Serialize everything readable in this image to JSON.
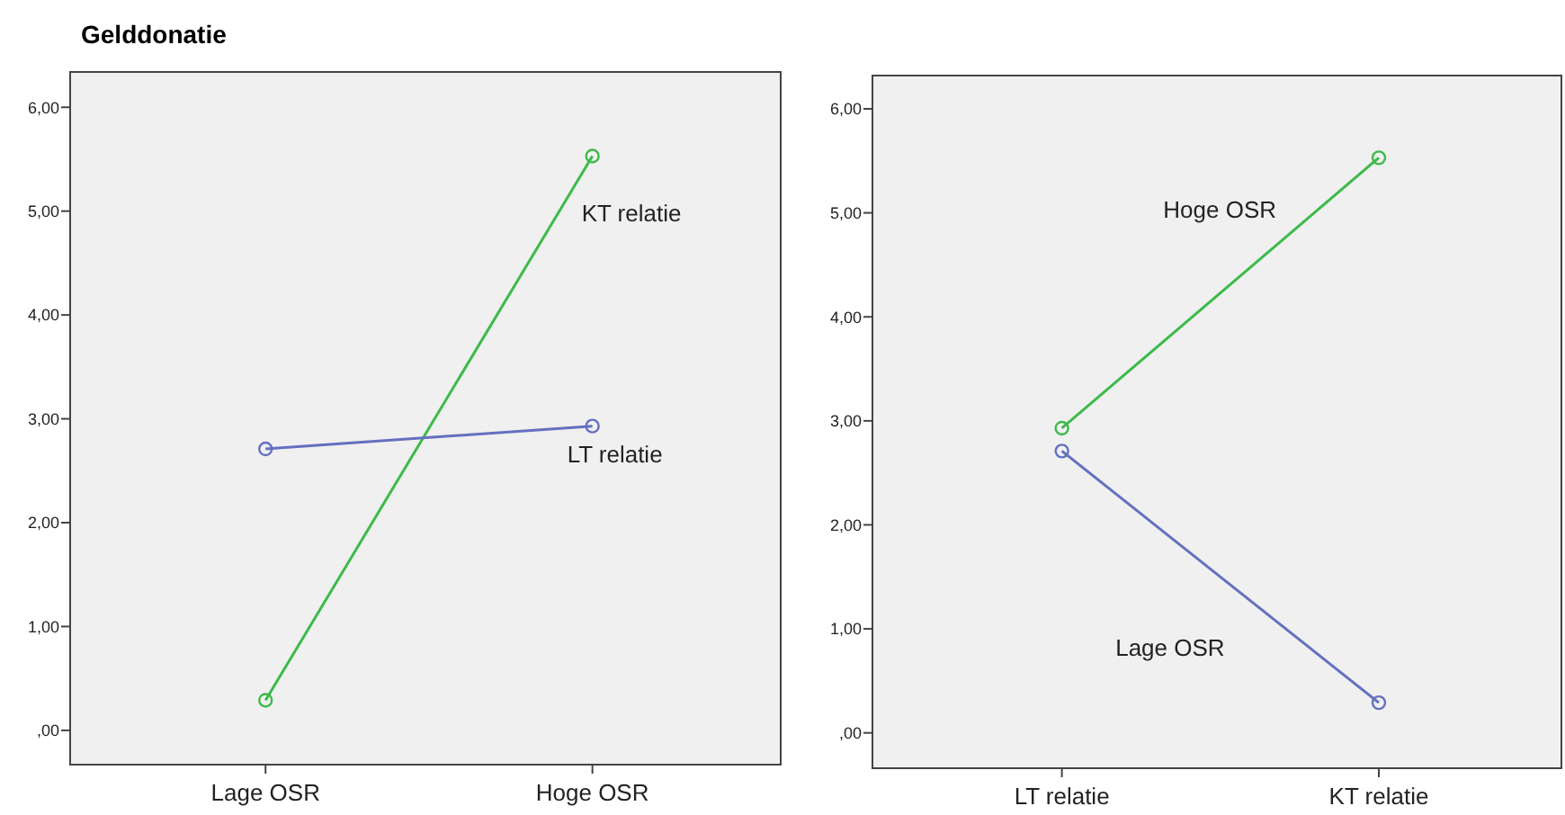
{
  "chart_data": [
    {
      "type": "line",
      "title": "Gelddonatie",
      "categories": [
        "Lage OSR",
        "Hoge OSR"
      ],
      "ylim": [
        -0.33,
        6.34
      ],
      "yticks": [
        {
          "value": 0,
          "label": ",00"
        },
        {
          "value": 1,
          "label": "1,00"
        },
        {
          "value": 2,
          "label": "2,00"
        },
        {
          "value": 3,
          "label": "3,00"
        },
        {
          "value": 4,
          "label": "4,00"
        },
        {
          "value": 5,
          "label": "5,00"
        },
        {
          "value": 6,
          "label": "6,00"
        }
      ],
      "marker": "circle",
      "grid": false,
      "series": [
        {
          "name": "KT relatie",
          "color": "#3dba4a",
          "values": [
            0.29,
            5.53
          ]
        },
        {
          "name": "LT relatie",
          "color": "#6470c0",
          "values": [
            2.71,
            2.93
          ]
        }
      ]
    },
    {
      "type": "line",
      "categories": [
        "LT relatie",
        "KT relatie"
      ],
      "ylim": [
        -0.34,
        6.32
      ],
      "yticks": [
        {
          "value": 0,
          "label": ",00"
        },
        {
          "value": 1,
          "label": "1,00"
        },
        {
          "value": 2,
          "label": "2,00"
        },
        {
          "value": 3,
          "label": "3,00"
        },
        {
          "value": 4,
          "label": "4,00"
        },
        {
          "value": 5,
          "label": "5,00"
        },
        {
          "value": 6,
          "label": "6,00"
        }
      ],
      "marker": "circle",
      "grid": false,
      "series": [
        {
          "name": "Hoge OSR",
          "color": "#3dba4a",
          "values": [
            2.93,
            5.53
          ]
        },
        {
          "name": "Lage OSR",
          "color": "#6470c0",
          "values": [
            2.71,
            0.29
          ]
        }
      ]
    }
  ]
}
